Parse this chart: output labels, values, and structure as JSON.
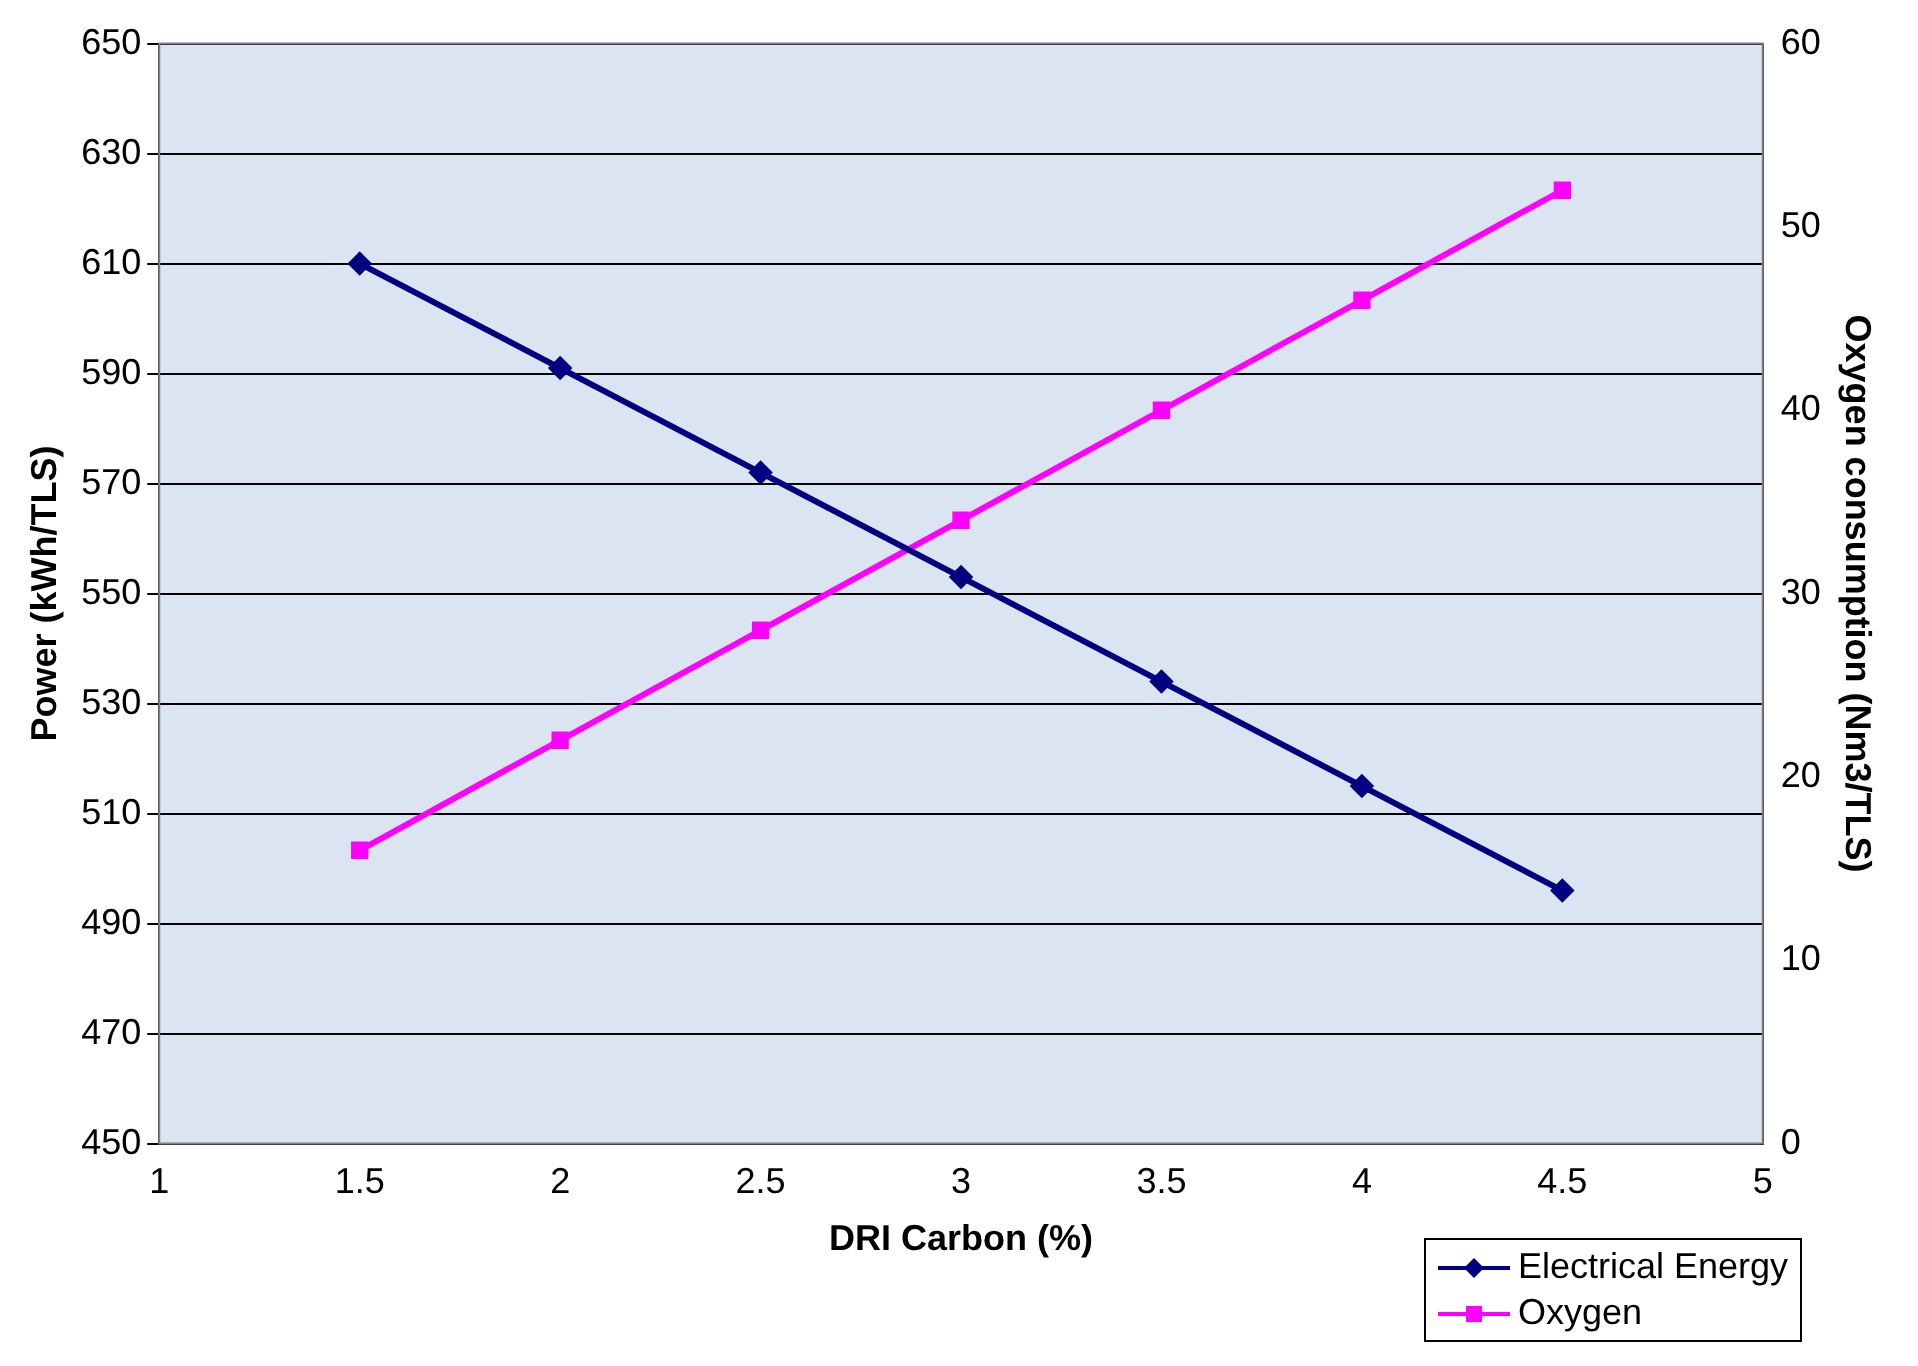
{
  "chart_data": {
    "type": "line",
    "xlabel": "DRI Carbon (%)",
    "ylabel": "Power (kWh/TLS)",
    "y2label": "Oxygen consumption (Nm3/TLS)",
    "x": [
      1.5,
      2,
      2.5,
      3,
      3.5,
      4,
      4.5
    ],
    "series": [
      {
        "name": "Electrical Energy",
        "color": "#000080",
        "marker": "diamond",
        "values": [
          610,
          591,
          572,
          553,
          534,
          515,
          496
        ]
      },
      {
        "name": "Oxygen",
        "color": "#ff00ff",
        "marker": "square",
        "axis": "y2",
        "values": [
          16,
          22,
          28,
          34,
          40,
          46,
          52
        ]
      }
    ],
    "xlim": [
      1,
      5
    ],
    "xticks": [
      1,
      1.5,
      2,
      2.5,
      3,
      3.5,
      4,
      4.5,
      5
    ],
    "ylim": [
      450,
      650
    ],
    "yticks": [
      450,
      470,
      490,
      510,
      530,
      550,
      570,
      590,
      610,
      630,
      650
    ],
    "y2lim": [
      0,
      60
    ],
    "y2ticks": [
      0,
      10,
      20,
      30,
      40,
      50,
      60
    ],
    "grid": "y",
    "legend": "bottom right",
    "line_style": "solid"
  }
}
